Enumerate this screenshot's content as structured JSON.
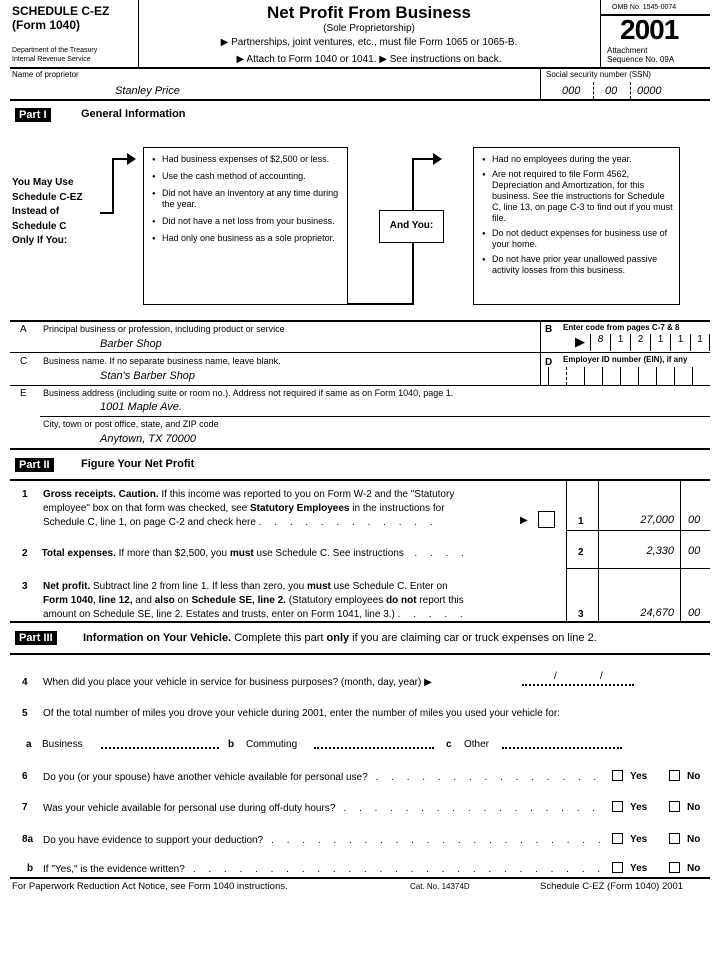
{
  "header": {
    "schedule": "SCHEDULE C-EZ",
    "form": "(Form 1040)",
    "dept1": "Department of the Treasury",
    "dept2": "Internal Revenue Service",
    "title": "Net Profit From Business",
    "subtitle": "(Sole Proprietorship)",
    "note1": "▶ Partnerships, joint ventures, etc., must file Form 1065 or 1065-B.",
    "note2": "▶ Attach to Form 1040 or 1041.   ▶ See instructions on back.",
    "omb": "OMB No. 1545-0074",
    "year": "2001",
    "attachment": "Attachment",
    "sequence": "Sequence No. 09A"
  },
  "proprietor": {
    "name_label": "Name of proprietor",
    "name": "Stanley Price",
    "ssn_label": "Social security number (SSN)",
    "ssn": [
      "000",
      "00",
      "0000"
    ]
  },
  "part1": {
    "label": "Part I",
    "title": "General Information",
    "left": [
      "You May Use",
      "Schedule C-EZ",
      "Instead of",
      "Schedule C",
      "Only If You:"
    ],
    "and_you": "And You:",
    "box1": [
      "Had business expenses of $2,500 or less.",
      "Use the cash method of accounting.",
      "Did not have an inventory at any time during the year.",
      "Did not have a net loss from your business.",
      "Had only one business as a sole proprietor."
    ],
    "box2": [
      "Had no employees during the year.",
      "Are not required to file Form 4562, Depreciation and Amortization, for this business. See the instructions for Schedule C, line 13, on page C-3 to find out if you must file.",
      "Do not deduct expenses for business use of your home.",
      "Do not have prior year unallowed passive activity losses from this business."
    ]
  },
  "lines": {
    "A": {
      "letter": "A",
      "label": "Principal business or profession, including product or service",
      "value": "Barber Shop"
    },
    "B": {
      "letter": "B",
      "label": "Enter code from pages C-7 & 8",
      "code": [
        "8",
        "1",
        "2",
        "1",
        "1",
        "1"
      ]
    },
    "C": {
      "letter": "C",
      "label": "Business name. If no separate business name, leave blank.",
      "value": "Stan's Barber Shop"
    },
    "D": {
      "letter": "D",
      "label": "Employer ID number (EIN), if any"
    },
    "E": {
      "letter": "E",
      "label": "Business address (including suite or room no.). Address not required if same as on Form 1040, page 1.",
      "value": "1001 Maple Ave.",
      "city_label": "City, town or post office, state, and ZIP code",
      "city": "Anytown, TX 70000"
    }
  },
  "part2": {
    "label": "Part II",
    "title": "Figure Your Net Profit",
    "l1": {
      "num": "1",
      "b1": "Gross receipts. Caution.",
      "t1": " If this income was reported to you on Form W-2 and the \"Statutory",
      "t2a": "employee\" box on that form was checked, see ",
      "b2": "Statutory Employees",
      "t2b": " in the instructions for",
      "t3": "Schedule C, line 1, on page C-2 and check here",
      "amount": "27,000",
      "cents": "00"
    },
    "l2": {
      "num": "2",
      "b1": "Total expenses.",
      "t1": " If more than $2,500, you ",
      "b2": "must",
      "t2": " use Schedule C. See instructions",
      "amount": "2,330",
      "cents": "00"
    },
    "l3": {
      "num": "3",
      "b1": "Net profit.",
      "t1": " Subtract line 2 from line 1. If less than zero, you ",
      "b2": "must",
      "t1b": " use Schedule C. Enter on",
      "b3": "Form 1040, line 12,",
      "t2": " and ",
      "b4": "also",
      "t2b": " on ",
      "b5": "Schedule SE, line 2.",
      "t2c": " (Statutory employees ",
      "b6": "do not",
      "t2d": " report this",
      "t3": "amount on Schedule SE, line 2. Estates and trusts, enter on Form 1041, line 3.)",
      "amount": "24,670",
      "cents": "00"
    }
  },
  "part3": {
    "label": "Part III",
    "title": "Information on Your Vehicle.",
    "desc1": " Complete this part ",
    "desc_b": "only",
    "desc2": " if you are claiming car or truck expenses on line 2.",
    "l4": {
      "num": "4",
      "text": "When did you place your vehicle in service for business purposes? (month, day, year) ▶"
    },
    "l5": {
      "num": "5",
      "text": "Of the total number of miles you drove your vehicle during 2001, enter the number of miles you used your vehicle for:"
    },
    "l5abc": {
      "a": "a",
      "a_label": "Business",
      "b": "b",
      "b_label": "Commuting",
      "c": "c",
      "c_label": "Other"
    },
    "questions": [
      {
        "num": "6",
        "text": "Do you (or your spouse) have another vehicle available for personal use?"
      },
      {
        "num": "7",
        "text": "Was your vehicle available for personal use during off-duty hours?"
      },
      {
        "num": "8a",
        "text": "Do you have evidence to support your deduction?"
      },
      {
        "num": "b",
        "text": "If \"Yes,\" is the evidence written?"
      }
    ],
    "yes": "Yes",
    "no": "No"
  },
  "footer": {
    "left": "For Paperwork Reduction Act Notice, see Form 1040 instructions.",
    "cat": "Cat. No. 14374D",
    "right": "Schedule C-EZ (Form 1040) 2001"
  }
}
